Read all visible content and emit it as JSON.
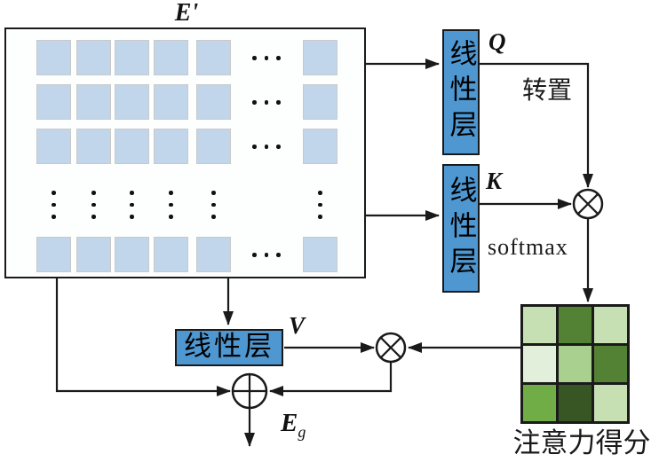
{
  "labels": {
    "input_matrix": "E'",
    "linear_layer": "线性层",
    "q": "Q",
    "k": "K",
    "v": "V",
    "transpose": "转置",
    "softmax": "softmax",
    "attention_score": "注意力得分",
    "output_base": "E",
    "output_sub": "g"
  },
  "colors": {
    "stroke": "#1a1a1a",
    "token_fill": "#c1d6eb",
    "token_border": "#c9c9c9",
    "linear_fill": "#4e97d1",
    "attention_cells": [
      [
        "#c6e0b4",
        "#548235",
        "#c6e0b4"
      ],
      [
        "#e2efda",
        "#a9d08e",
        "#548235"
      ],
      [
        "#70ad47",
        "#375623",
        "#c6e0b4"
      ]
    ]
  },
  "token_matrix": {
    "visible_square_rows": 4,
    "visible_square_cols": 6,
    "row_ellipsis_groups": 6,
    "col_ellipsis_groups": 4
  },
  "attention_matrix": {
    "rows": 3,
    "cols": 3
  }
}
